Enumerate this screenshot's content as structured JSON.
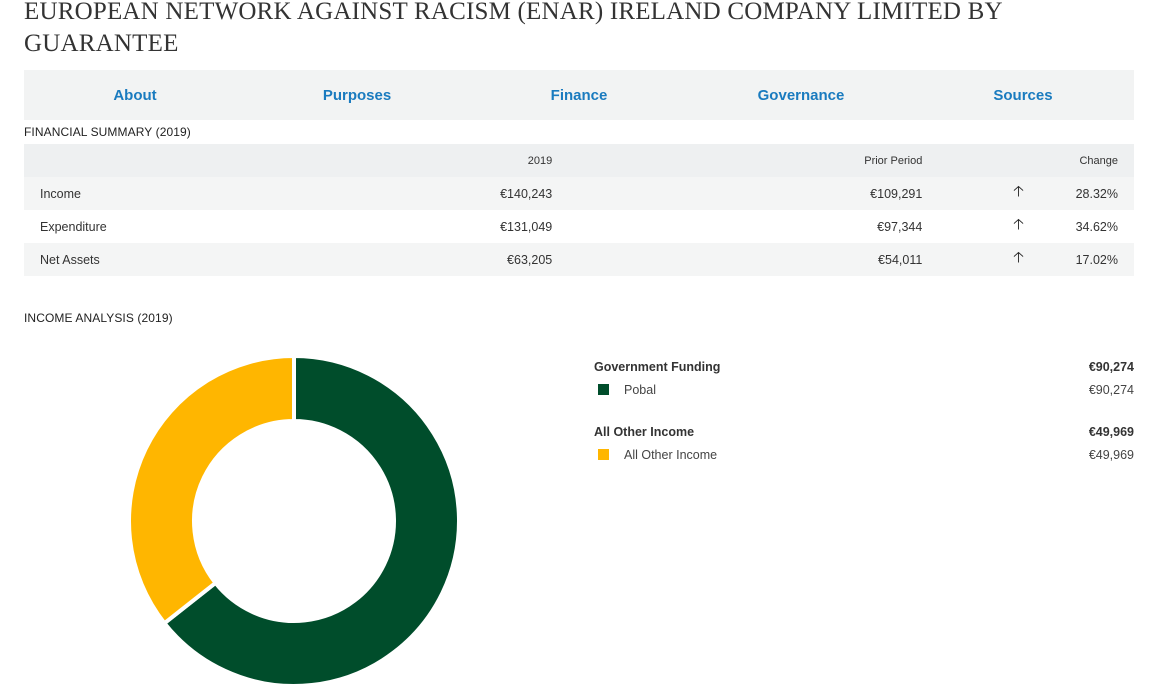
{
  "page": {
    "title": "EUROPEAN NETWORK AGAINST RACISM (ENAR) IRELAND COMPANY LIMITED BY GUARANTEE"
  },
  "tabs": [
    {
      "label": "About"
    },
    {
      "label": "Purposes"
    },
    {
      "label": "Finance"
    },
    {
      "label": "Governance"
    },
    {
      "label": "Sources"
    }
  ],
  "financial_summary": {
    "heading": "FINANCIAL SUMMARY (2019)",
    "columns": {
      "year": "2019",
      "prior": "Prior Period",
      "change": "Change"
    },
    "rows": [
      {
        "label": "Income",
        "year": "€140,243",
        "prior": "€109,291",
        "arrow_icon": "arrow-up-icon",
        "change": "28.32%"
      },
      {
        "label": "Expenditure",
        "year": "€131,049",
        "prior": "€97,344",
        "arrow_icon": "arrow-up-icon",
        "change": "34.62%"
      },
      {
        "label": "Net Assets",
        "year": "€63,205",
        "prior": "€54,011",
        "arrow_icon": "arrow-up-icon",
        "change": "17.02%"
      }
    ]
  },
  "income_analysis": {
    "heading": "INCOME ANALYSIS (2019)",
    "groups": [
      {
        "name": "Government Funding",
        "total": "€90,274",
        "items": [
          {
            "label": "Pobal",
            "value": "€90,274",
            "color": "#004d2b"
          }
        ]
      },
      {
        "name": "All Other Income",
        "total": "€49,969",
        "items": [
          {
            "label": "All Other Income",
            "value": "€49,969",
            "color": "#ffb600"
          }
        ]
      }
    ]
  },
  "chart_data": {
    "type": "pie",
    "variant": "donut",
    "categories": [
      "Pobal",
      "All Other Income"
    ],
    "values": [
      90274,
      49969
    ],
    "colors": [
      "#004d2b",
      "#ffb600"
    ]
  }
}
